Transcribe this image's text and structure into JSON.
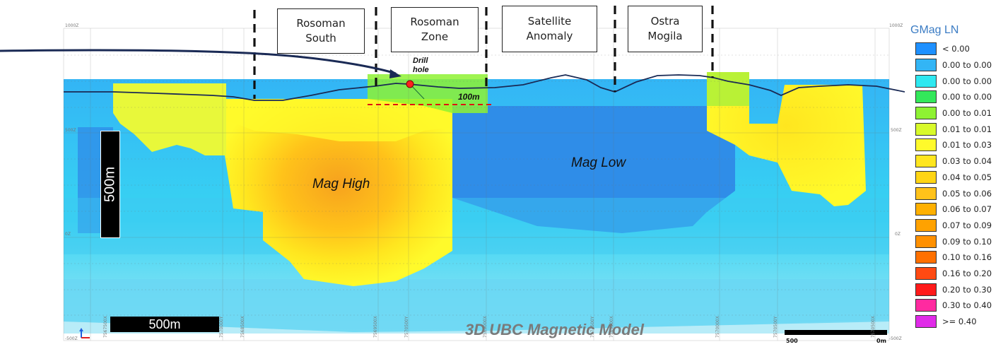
{
  "zones": [
    {
      "id": "rosoman-south",
      "label": "Rosoman\nSouth"
    },
    {
      "id": "rosoman-zone",
      "label": "Rosoman\nZone"
    },
    {
      "id": "satellite-anomaly",
      "label": "Satellite\nAnomaly"
    },
    {
      "id": "ostra-mogila",
      "label": "Ostra\nMogila"
    }
  ],
  "annotations": {
    "drill_hole": "Drill\nhole",
    "hundred_m": "100m",
    "mag_high": "Mag High",
    "mag_low": "Mag Low",
    "vertical_scale": "500m",
    "horizontal_scale": "500m",
    "model_title": "3D UBC Magnetic Model"
  },
  "elevation_ticks": {
    "top": "1000Z",
    "upper": "500Z",
    "middle": "0Z",
    "bottom": "-500Z"
  },
  "easting_ticks": [
    "7567500X",
    "7570000Y",
    "7568500X",
    "7569500X",
    "7570500Y",
    "7569000X",
    "7571500Y",
    "7569500X",
    "7570000X",
    "7570500Y",
    "7570500X"
  ],
  "scale_bar": {
    "left": "500",
    "right": "0m"
  },
  "legend": {
    "title": "GMag LN",
    "items": [
      {
        "label": "< 0.00",
        "color": "#1e90ff"
      },
      {
        "label": "0.00 to 0.00",
        "color": "#33b5f5"
      },
      {
        "label": "0.00 to 0.00",
        "color": "#2ee8f0"
      },
      {
        "label": "0.00 to 0.00",
        "color": "#33e85a"
      },
      {
        "label": "0.00 to 0.01",
        "color": "#8ef233"
      },
      {
        "label": "0.01 to 0.01",
        "color": "#d8fa2a"
      },
      {
        "label": "0.01 to 0.03",
        "color": "#fffa2b"
      },
      {
        "label": "0.03 to 0.04",
        "color": "#ffe61f"
      },
      {
        "label": "0.04 to 0.05",
        "color": "#ffd514"
      },
      {
        "label": "0.05 to 0.06",
        "color": "#ffc21a"
      },
      {
        "label": "0.06 to 0.07",
        "color": "#ffb000"
      },
      {
        "label": "0.07 to 0.09",
        "color": "#ffa200"
      },
      {
        "label": "0.09 to 0.10",
        "color": "#ff9000"
      },
      {
        "label": "0.10 to 0.16",
        "color": "#ff7000"
      },
      {
        "label": "0.16 to 0.20",
        "color": "#ff4a12"
      },
      {
        "label": "0.20 to 0.30",
        "color": "#ff1a1a"
      },
      {
        "label": "0.30 to 0.40",
        "color": "#ff2aa0"
      },
      {
        "label": ">= 0.40",
        "color": "#e02ae8"
      }
    ]
  }
}
